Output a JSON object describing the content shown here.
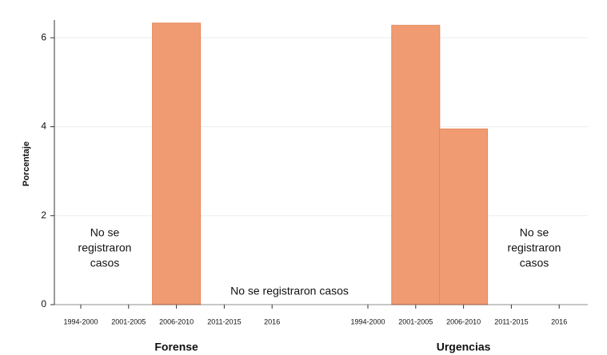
{
  "chart_data": {
    "type": "bar",
    "ylabel": "Porcentaje",
    "ylim": [
      0,
      6.4
    ],
    "yticks": [
      0,
      2,
      4,
      6
    ],
    "grid": true,
    "color": "#f09b72",
    "panels": [
      {
        "title": "Forense",
        "categories": [
          "1994-2000",
          "2001-2005",
          "2006-2010",
          "2011-2015",
          "2016"
        ],
        "values": [
          null,
          null,
          6.33,
          null,
          null
        ],
        "annotations": [
          [
            "No se",
            "registraron",
            "casos"
          ],
          [
            "No se  registraron casos"
          ]
        ]
      },
      {
        "title": "Urgencias",
        "categories": [
          "1994-2000",
          "2001-2005",
          "2006-2010",
          "2011-2015",
          "2016"
        ],
        "values": [
          null,
          6.28,
          3.95,
          null,
          null
        ],
        "annotations": [
          [
            "No se",
            "registraron",
            "casos"
          ]
        ]
      }
    ]
  }
}
